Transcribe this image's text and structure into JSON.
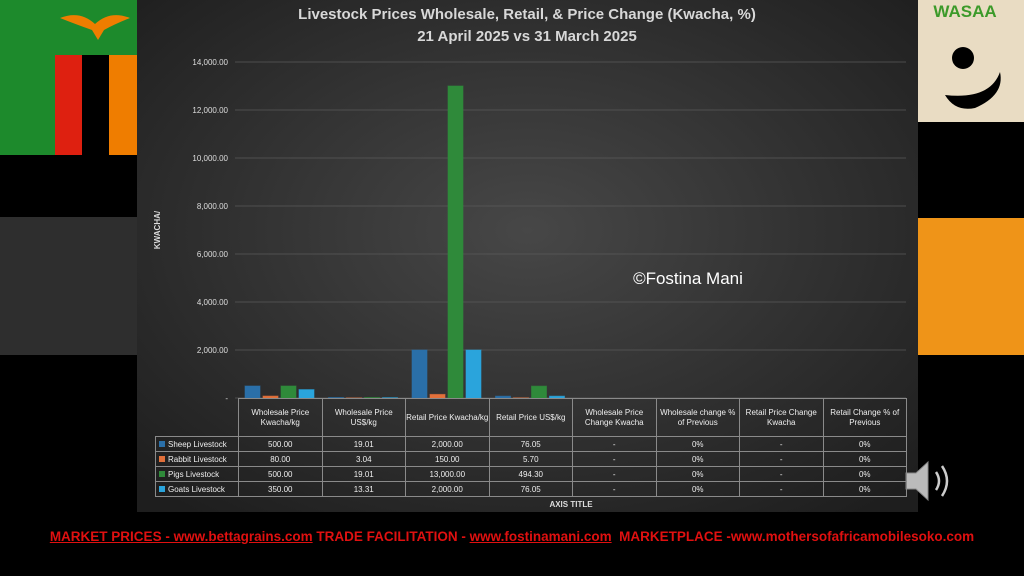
{
  "chart_data": {
    "type": "bar",
    "title": "Livestock Prices Wholesale, Retail, & Price Change (Kwacha, %)",
    "subtitle": "21 April 2025 vs 31 March 2025",
    "y_axis_label": "KWACHA/",
    "x_axis_label": "AXIS TITLE",
    "annotation": "©Fostina Mani",
    "categories": [
      "Wholesale Price Kwacha/kg",
      "Wholesale Price US$/kg",
      "Retail Price Kwacha/kg",
      "Retail Price US$/kg",
      "Wholesale Price Change Kwacha",
      "Wholesale change  % of Previous",
      "Retail Price Change Kwacha",
      "Retail Change % of Previous"
    ],
    "series": [
      {
        "name": "Sheep Livestock",
        "color": "#2a6fa8",
        "values": [
          500,
          19.01,
          2000,
          76.05,
          0,
          0,
          0,
          0
        ],
        "value_labels": [
          "500.00",
          "19.01",
          "2,000.00",
          "76.05",
          "-",
          "0%",
          "-",
          "0%"
        ]
      },
      {
        "name": "Rabbit Livestock",
        "color": "#e2703a",
        "values": [
          80,
          3.04,
          150,
          5.7,
          0,
          0,
          0,
          0
        ],
        "value_labels": [
          "80.00",
          "3.04",
          "150.00",
          "5.70",
          "-",
          "0%",
          "-",
          "0%"
        ]
      },
      {
        "name": "Pigs Livestock",
        "color": "#2f8a3a",
        "values": [
          500,
          19.01,
          13000,
          494.3,
          0,
          0,
          0,
          0
        ],
        "value_labels": [
          "500.00",
          "19.01",
          "13,000.00",
          "494.30",
          "-",
          "0%",
          "-",
          "0%"
        ]
      },
      {
        "name": "Goats Livestock",
        "color": "#2aa4dc",
        "values": [
          350,
          13.31,
          2000,
          76.05,
          0,
          0,
          0,
          0
        ],
        "value_labels": [
          "350.00",
          "13.31",
          "2,000.00",
          "76.05",
          "-",
          "0%",
          "-",
          "0%"
        ]
      }
    ],
    "ylim": [
      0,
      14000
    ],
    "yticks": [
      {
        "value": 0,
        "label": "-"
      },
      {
        "value": 2000,
        "label": "2,000.00"
      },
      {
        "value": 4000,
        "label": "4,000.00"
      },
      {
        "value": 6000,
        "label": "6,000.00"
      },
      {
        "value": 8000,
        "label": "8,000.00"
      },
      {
        "value": 10000,
        "label": "10,000.00"
      },
      {
        "value": 12000,
        "label": "12,000.00"
      },
      {
        "value": 14000,
        "label": "14,000.00"
      }
    ],
    "grid": true
  },
  "logo": {
    "text": "WASAA"
  },
  "footer": {
    "segments": [
      {
        "text": "MARKET PRICES - www.bettagrains.com",
        "underline": true
      },
      {
        "text": " TRADE FACILITATION - ",
        "underline": false
      },
      {
        "text": "www.fostinamani.com",
        "underline": true
      },
      {
        "text": "  MARKETPLACE -www.mothersofafricamobilesoko.com",
        "underline": false
      }
    ]
  }
}
